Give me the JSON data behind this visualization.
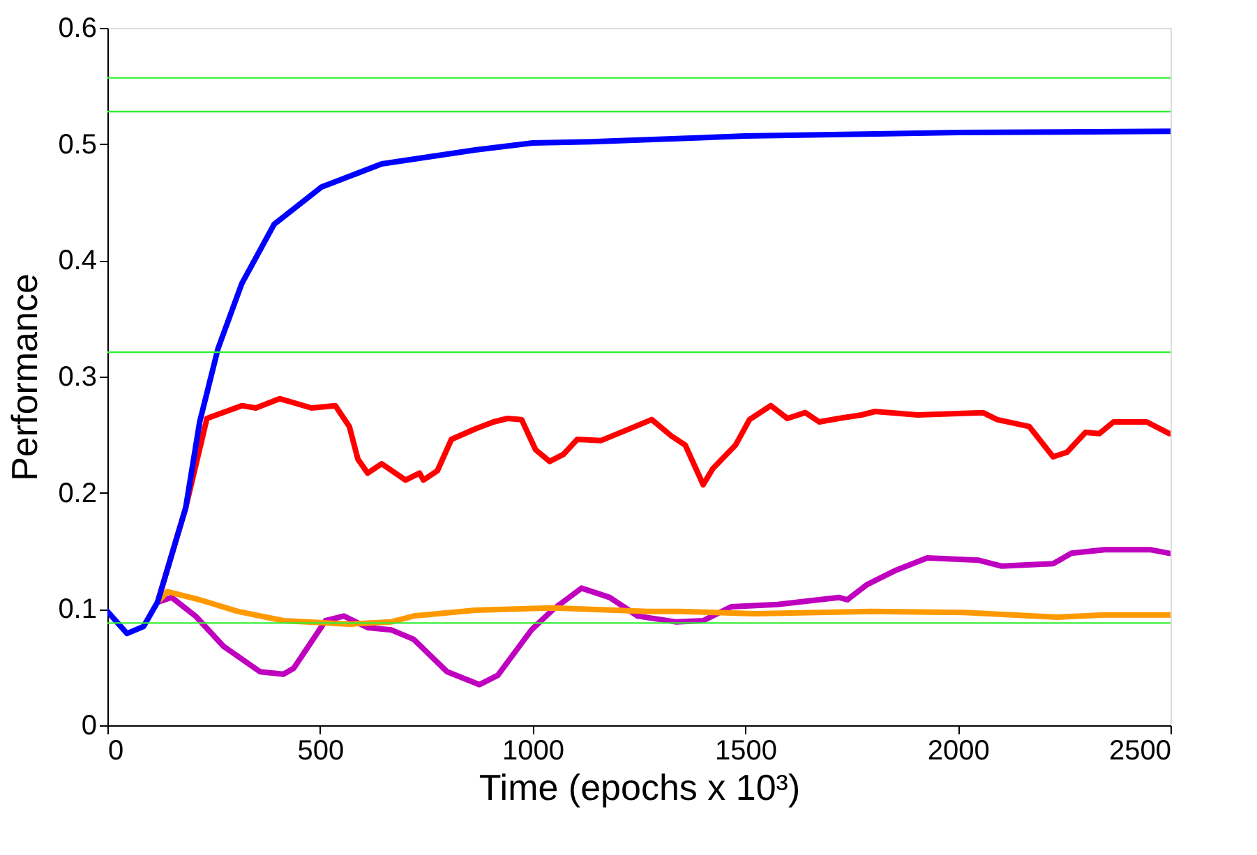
{
  "chart_data": {
    "type": "line",
    "xlabel": "Time (epochs x 10³)",
    "ylabel": "Performance",
    "xlim": [
      0,
      2500
    ],
    "xticks": [
      0,
      500,
      1000,
      1500,
      2000,
      2500
    ],
    "ylim": [
      0,
      0.6
    ],
    "yticks": [
      0,
      0.1,
      0.2,
      0.3,
      0.4,
      0.5,
      0.6
    ],
    "grid": false,
    "legend": false,
    "marker": "none",
    "line_style": "solid",
    "series": [
      {
        "color": "#ff0000",
        "x": [
          118,
          184,
          234,
          316,
          349,
          405,
          480,
          536,
          569,
          589,
          612,
          645,
          701,
          734,
          743,
          776,
          809,
          865,
          908,
          941,
          974,
          1007,
          1040,
          1072,
          1105,
          1161,
          1214,
          1280,
          1326,
          1359,
          1401,
          1424,
          1477,
          1510,
          1560,
          1599,
          1641,
          1674,
          1720,
          1773,
          1806,
          1905,
          2059,
          2092,
          2168,
          2224,
          2257,
          2300,
          2333,
          2366,
          2444,
          2497
        ],
        "values": [
          0.106,
          0.187,
          0.264,
          0.275,
          0.273,
          0.281,
          0.273,
          0.275,
          0.257,
          0.229,
          0.217,
          0.225,
          0.211,
          0.217,
          0.211,
          0.219,
          0.246,
          0.255,
          0.261,
          0.264,
          0.263,
          0.237,
          0.227,
          0.233,
          0.246,
          0.245,
          0.253,
          0.263,
          0.249,
          0.241,
          0.207,
          0.221,
          0.241,
          0.263,
          0.275,
          0.264,
          0.269,
          0.261,
          0.264,
          0.267,
          0.27,
          0.267,
          0.269,
          0.263,
          0.257,
          0.231,
          0.235,
          0.252,
          0.251,
          0.261,
          0.261,
          0.251
        ]
      },
      {
        "color": "#bf00bf",
        "x": [
          118,
          151,
          207,
          273,
          359,
          414,
          438,
          513,
          556,
          612,
          668,
          720,
          799,
          875,
          918,
          997,
          1049,
          1115,
          1181,
          1247,
          1336,
          1401,
          1467,
          1576,
          1720,
          1740,
          1786,
          1852,
          1928,
          2049,
          2102,
          2224,
          2267,
          2345,
          2454,
          2497
        ],
        "values": [
          0.106,
          0.11,
          0.094,
          0.068,
          0.046,
          0.044,
          0.049,
          0.09,
          0.094,
          0.084,
          0.082,
          0.074,
          0.046,
          0.035,
          0.043,
          0.082,
          0.1,
          0.118,
          0.11,
          0.094,
          0.089,
          0.09,
          0.102,
          0.104,
          0.11,
          0.108,
          0.121,
          0.133,
          0.144,
          0.142,
          0.137,
          0.139,
          0.148,
          0.151,
          0.151,
          0.148
        ]
      },
      {
        "color": "#ff9900",
        "x": [
          118,
          141,
          217,
          306,
          414,
          569,
          668,
          720,
          865,
          1049,
          1270,
          1346,
          1523,
          1796,
          2016,
          2234,
          2345,
          2497
        ],
        "values": [
          0.106,
          0.115,
          0.108,
          0.098,
          0.09,
          0.087,
          0.089,
          0.094,
          0.099,
          0.101,
          0.098,
          0.098,
          0.096,
          0.098,
          0.097,
          0.093,
          0.095,
          0.095
        ]
      },
      {
        "color": "#0000ff",
        "x": [
          0,
          46,
          85,
          118,
          184,
          217,
          260,
          316,
          392,
          503,
          645,
          865,
          1000,
          1138,
          1500,
          2000,
          2500
        ],
        "values": [
          0.098,
          0.079,
          0.085,
          0.106,
          0.187,
          0.261,
          0.324,
          0.38,
          0.431,
          0.463,
          0.483,
          0.495,
          0.501,
          0.502,
          0.507,
          0.51,
          0.511
        ]
      }
    ],
    "ref_lines": [
      {
        "axis": "y",
        "value": 0.557,
        "color": "#33ee33"
      },
      {
        "axis": "y",
        "value": 0.528,
        "color": "#33ee33"
      },
      {
        "axis": "y",
        "value": 0.321,
        "color": "#33ee33"
      },
      {
        "axis": "y",
        "value": 0.088,
        "color": "#33ee33"
      }
    ]
  }
}
